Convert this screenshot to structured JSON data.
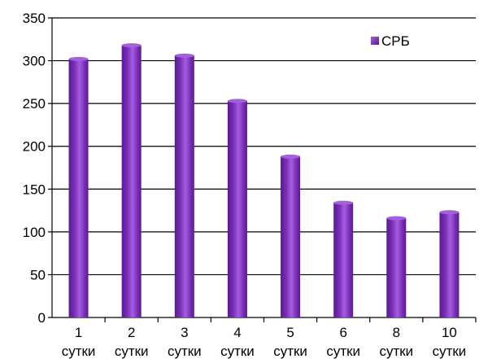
{
  "chart_data": {
    "type": "bar",
    "categories": [
      [
        "1",
        "сутки"
      ],
      [
        "2",
        "сутки"
      ],
      [
        "3",
        "сутки"
      ],
      [
        "4",
        "сутки"
      ],
      [
        "5",
        "сутки"
      ],
      [
        "6",
        "сутки"
      ],
      [
        "8",
        "сутки"
      ],
      [
        "10",
        "сутки"
      ]
    ],
    "series": [
      {
        "name": "СРБ",
        "values": [
          302,
          318,
          306,
          253,
          188,
          134,
          116,
          123
        ]
      }
    ],
    "ylim": [
      0,
      350
    ],
    "yticks": [
      0,
      50,
      100,
      150,
      200,
      250,
      300,
      350
    ],
    "grid": "horizontal",
    "legend": "top-right",
    "colors": {
      "bar": "#7a2fb8",
      "bar_light": "#a45ee0",
      "bar_dark": "#5a1a94",
      "grid": "#000000"
    }
  }
}
